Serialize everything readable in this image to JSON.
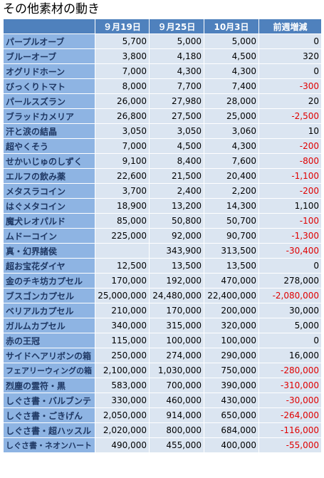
{
  "header": {
    "title": "その他素材の動き"
  },
  "table": {
    "columns": [
      null,
      "９月19日",
      "９月25日",
      "10月3日",
      "前週増減"
    ],
    "rows": [
      [
        "パープルオーブ",
        "5,700",
        "5,000",
        "5,000",
        "0"
      ],
      [
        "ブルーオーブ",
        "3,800",
        "4,180",
        "4,500",
        "320"
      ],
      [
        "オグリドホーン",
        "7,000",
        "4,300",
        "4,300",
        "0"
      ],
      [
        "びっくりトマト",
        "8,000",
        "7,700",
        "7,400",
        "-300"
      ],
      [
        "パールスズラン",
        "26,000",
        "27,980",
        "28,000",
        "20"
      ],
      [
        "ブラッドカメリア",
        "26,800",
        "27,500",
        "25,000",
        "-2,500"
      ],
      [
        "汗と涙の結晶",
        "3,050",
        "3,050",
        "3,060",
        "10"
      ],
      [
        "超やくそう",
        "7,000",
        "4,500",
        "4,300",
        "-200"
      ],
      [
        "せかいじゅのしずく",
        "9,100",
        "8,400",
        "7,600",
        "-800"
      ],
      [
        "エルフの飲み薬",
        "22,600",
        "21,500",
        "20,400",
        "-1,100"
      ],
      [
        "メタスラコイン",
        "3,700",
        "2,400",
        "2,200",
        "-200"
      ],
      [
        "はぐメタコイン",
        "18,900",
        "13,200",
        "14,300",
        "1,100"
      ],
      [
        "魔犬レオパルド",
        "85,000",
        "50,800",
        "50,700",
        "-100"
      ],
      [
        "ムドーコイン",
        "225,000",
        "92,000",
        "90,700",
        "-1,300"
      ],
      [
        "真・幻界諸侯",
        null,
        "343,900",
        "313,500",
        "-30,400"
      ],
      [
        "超お宝花ダイヤ",
        "12,500",
        "13,500",
        "13,500",
        "0"
      ],
      [
        "金のチキ坊カプセル",
        "170,000",
        "192,000",
        "470,000",
        "278,000"
      ],
      [
        "ブスゴンカプセル",
        "25,000,000",
        "24,480,000",
        "22,400,000",
        "-2,080,000"
      ],
      [
        "ベリアルカプセル",
        "210,000",
        "170,000",
        "200,000",
        "30,000"
      ],
      [
        "ガルムカプセル",
        "340,000",
        "315,000",
        "320,000",
        "5,000"
      ],
      [
        "赤の王冠",
        "115,000",
        "100,000",
        "100,000",
        "0"
      ],
      [
        "サイドヘアリボンの箱",
        "250,000",
        "274,000",
        "290,000",
        "16,000"
      ],
      [
        "フェアリーウィングの箱",
        "2,100,000",
        "1,030,000",
        "750,000",
        "-280,000"
      ],
      [
        "烈塵の霊符・黒",
        "583,000",
        "700,000",
        "390,000",
        "-310,000"
      ],
      [
        "しぐさ書・バルブンテ",
        "330,000",
        "460,000",
        "430,000",
        "-30,000"
      ],
      [
        "しぐさ書・ごきげん",
        "2,050,000",
        "914,000",
        "650,000",
        "-264,000"
      ],
      [
        "しぐさ書・超ハッスル",
        "2,020,000",
        "800,000",
        "684,000",
        "-116,000"
      ],
      [
        "しぐさ書・ネオンハート",
        "490,000",
        "455,000",
        "400,000",
        "-55,000"
      ]
    ]
  }
}
